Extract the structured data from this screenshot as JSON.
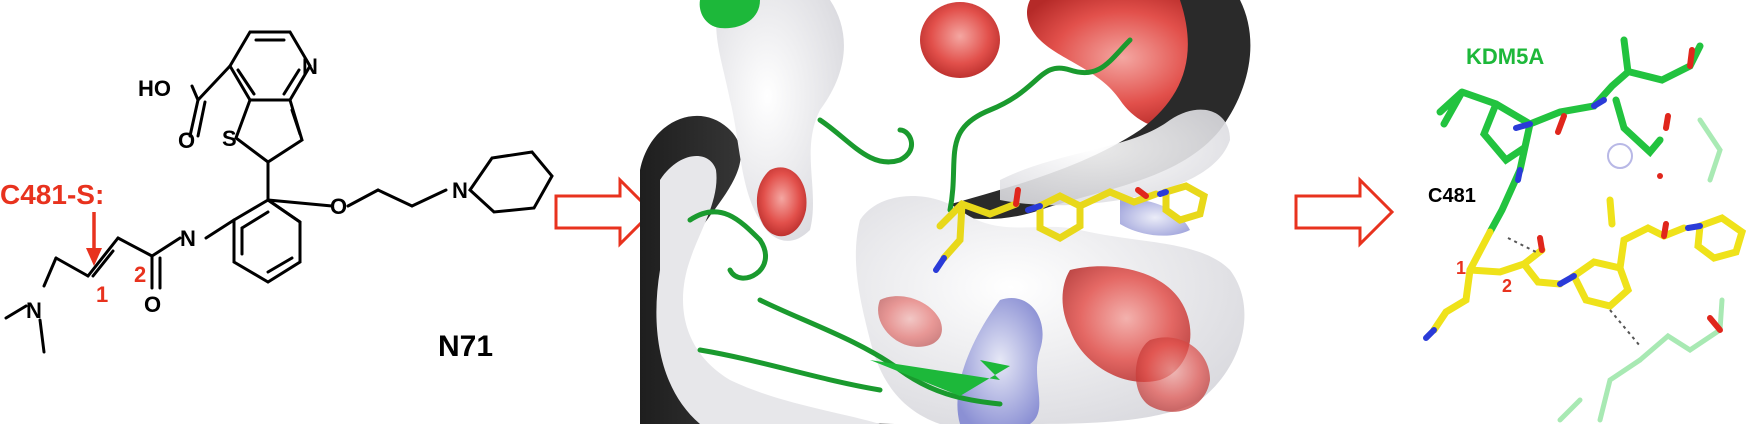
{
  "structure": {
    "atoms": {
      "ho": "HO",
      "o_acid": "O",
      "n_ring": "N",
      "s_ring": "S",
      "o_ether": "O",
      "n_pip": "N",
      "n_amide": "N",
      "o_amide": "O",
      "n_dimethyl": "N"
    },
    "attack_label": "C481-S:",
    "carbon_1": "1",
    "carbon_2": "2",
    "compound_name": "N71"
  },
  "detail": {
    "protein_label": "KDM5A",
    "residue_label": "C481",
    "carbon_1": "1",
    "carbon_2": "2"
  },
  "colors": {
    "highlight": "#e8321e",
    "protein": "#1db83a",
    "ligand": "#f2e21a",
    "arrow": "#e8321e"
  }
}
